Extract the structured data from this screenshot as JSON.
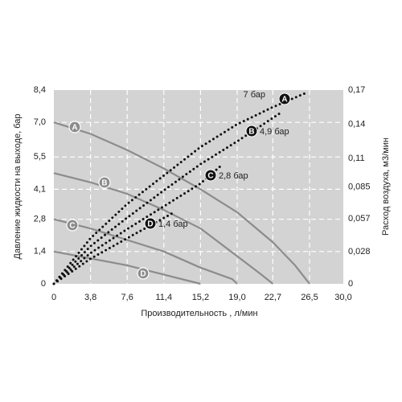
{
  "chart_data": {
    "type": "line",
    "x_label": "Производительность , л/мин",
    "y_label": "Давление жидкости на выходе, бар",
    "y2_label": "Расход воздуха, м3/мин",
    "xlim": [
      0,
      30
    ],
    "ylim": [
      0,
      8.4
    ],
    "y2lim": [
      0,
      0.17
    ],
    "xticks": [
      0,
      {
        "value": 3.8,
        "label": "3,8"
      },
      {
        "value": 7.6,
        "label": "7,6"
      },
      {
        "value": 11.4,
        "label": "11,4"
      },
      {
        "value": 15.2,
        "label": "15,2"
      },
      {
        "value": 19.0,
        "label": "19,0"
      },
      {
        "value": 22.7,
        "label": "22,7"
      },
      {
        "value": 26.5,
        "label": "26,5"
      },
      {
        "value": 30.0,
        "label": "30,0"
      }
    ],
    "yticks": [
      0,
      {
        "value": 1.4,
        "label": "1,4"
      },
      {
        "value": 2.8,
        "label": "2,8"
      },
      {
        "value": 4.1,
        "label": "4,1"
      },
      {
        "value": 5.5,
        "label": "5,5"
      },
      {
        "value": 7.0,
        "label": "7,0"
      },
      {
        "value": 8.4,
        "label": "8,4"
      }
    ],
    "y2ticks": [
      0,
      {
        "value": 0.028,
        "label": "0,028"
      },
      {
        "value": 0.057,
        "label": "0,057"
      },
      {
        "value": 0.085,
        "label": "0,085"
      },
      {
        "value": 0.11,
        "label": "0,11"
      },
      {
        "value": 0.14,
        "label": "0,14"
      },
      {
        "value": 0.17,
        "label": "0,17"
      }
    ],
    "grid": true,
    "series": [
      {
        "name": "A",
        "color": "#8c8c8c",
        "x": [
          0,
          3.8,
          7.6,
          11.4,
          15.2,
          19.0,
          22.7,
          25.0,
          26.5
        ],
        "values": [
          7.0,
          6.5,
          5.8,
          5.0,
          4.1,
          3.1,
          1.8,
          0.8,
          0
        ]
      },
      {
        "name": "B",
        "color": "#8c8c8c",
        "x": [
          0,
          3.8,
          7.6,
          11.4,
          15.2,
          19.0,
          21.5,
          22.7
        ],
        "values": [
          4.8,
          4.4,
          3.9,
          3.2,
          2.4,
          1.2,
          0.4,
          0
        ]
      },
      {
        "name": "C",
        "color": "#8c8c8c",
        "x": [
          0,
          3.8,
          7.6,
          11.4,
          15.2,
          18.5,
          19.0
        ],
        "values": [
          2.8,
          2.4,
          1.9,
          1.4,
          0.7,
          0.2,
          0
        ]
      },
      {
        "name": "D",
        "color": "#8c8c8c",
        "x": [
          0,
          3.8,
          7.6,
          11.4,
          15.2
        ],
        "values": [
          1.4,
          1.1,
          0.8,
          0.4,
          0
        ]
      },
      {
        "name": "7 бар",
        "letter": "A",
        "axis": "y2",
        "style": "dotted",
        "color": "#111",
        "x": [
          0,
          3.8,
          7.6,
          11.4,
          15.2,
          19.0,
          22.7,
          26.0
        ],
        "values": [
          0,
          0.04,
          0.07,
          0.095,
          0.12,
          0.14,
          0.155,
          0.167
        ]
      },
      {
        "name": "4,9 бар",
        "letter": "B",
        "axis": "y2",
        "style": "dotted",
        "color": "#111",
        "x": [
          0,
          3.8,
          7.6,
          11.4,
          15.2,
          19.0,
          23.5
        ],
        "values": [
          0,
          0.033,
          0.058,
          0.082,
          0.105,
          0.125,
          0.15
        ]
      },
      {
        "name": "2,8 бар",
        "letter": "C",
        "axis": "y2",
        "style": "dotted",
        "color": "#111",
        "x": [
          0,
          3.8,
          7.6,
          11.4,
          15.2,
          17.5
        ],
        "values": [
          0,
          0.027,
          0.048,
          0.068,
          0.088,
          0.105
        ]
      },
      {
        "name": "1,4 бар",
        "letter": "D",
        "axis": "y2",
        "style": "dotted",
        "color": "#111",
        "x": [
          0,
          3.8,
          7.6,
          12.3
        ],
        "values": [
          0,
          0.022,
          0.04,
          0.062
        ]
      }
    ]
  }
}
